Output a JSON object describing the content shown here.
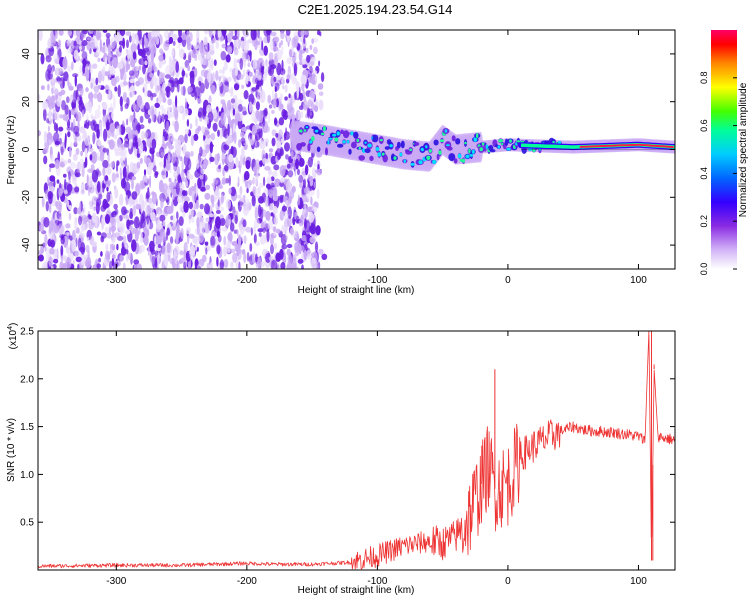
{
  "figure_title": "C2E1.2025.194.23.54.G14",
  "colors": {
    "snr_line": "#ee3333",
    "spectrum_dense": "#6a1ee0",
    "spectrum_light": "#c9a9f5"
  },
  "chart_data": [
    {
      "type": "heatmap",
      "title": "",
      "xlabel": "Height of straight line (km)",
      "ylabel": "Frequency (Hz)",
      "xlim": [
        -360,
        128
      ],
      "ylim": [
        -50,
        50
      ],
      "x_ticks": [
        "-300",
        "-200",
        "-100",
        "0",
        "100"
      ],
      "x_tick_values": [
        -300,
        -200,
        -100,
        0,
        100
      ],
      "y_ticks": [
        "40",
        "20",
        "0",
        "-20",
        "-40"
      ],
      "y_tick_values": [
        40,
        20,
        0,
        -20,
        -40
      ],
      "colorbar": {
        "label": "Normalized spectral amplitude",
        "range": [
          0,
          1
        ],
        "ticks": [
          "0.0",
          "0.2",
          "0.4",
          "0.6",
          "0.8"
        ],
        "tick_values": [
          0.0,
          0.2,
          0.4,
          0.6,
          0.8
        ],
        "colormap": [
          "#ffffff",
          "#d2b4f7",
          "#8a2be2",
          "#3300ff",
          "#0066ff",
          "#00ccff",
          "#00ff99",
          "#44ff00",
          "#ffff00",
          "#ff8800",
          "#ff0000",
          "#ff0066"
        ]
      },
      "regions": [
        {
          "name": "noise",
          "x_range": [
            -360,
            -150
          ],
          "freq_range": [
            -50,
            50
          ],
          "amplitude": 0.2
        },
        {
          "name": "ridge",
          "x_range": [
            -165,
            128
          ],
          "center_freq": 2,
          "amplitude_peak": 1.0
        }
      ],
      "ridge_path": [
        {
          "x": -165,
          "f": 6
        },
        {
          "x": -140,
          "f": 4
        },
        {
          "x": -120,
          "f": 2
        },
        {
          "x": -100,
          "f": 0
        },
        {
          "x": -80,
          "f": -2
        },
        {
          "x": -60,
          "f": -3
        },
        {
          "x": -50,
          "f": 4
        },
        {
          "x": -40,
          "f": 0
        },
        {
          "x": -20,
          "f": 1
        },
        {
          "x": 0,
          "f": 2
        },
        {
          "x": 50,
          "f": 1
        },
        {
          "x": 100,
          "f": 2
        },
        {
          "x": 128,
          "f": 1
        }
      ]
    },
    {
      "type": "line",
      "title": "",
      "xlabel": "Height of straight line (km)",
      "ylabel": "SNR (10 * v/v)",
      "y_multiplier": "(x10",
      "y_multiplier_exp": "4",
      "y_multiplier_close": ")",
      "xlim": [
        -360,
        128
      ],
      "ylim": [
        0,
        2.5
      ],
      "x_ticks": [
        "-300",
        "-200",
        "-100",
        "0",
        "100"
      ],
      "x_tick_values": [
        -300,
        -200,
        -100,
        0,
        100
      ],
      "y_ticks": [
        "0.5",
        "1.0",
        "1.5",
        "2.0",
        "2.5"
      ],
      "y_tick_values": [
        0.5,
        1.0,
        1.5,
        2.0,
        2.5
      ],
      "series": [
        {
          "color": "#ee3333",
          "x": [
            -360,
            -300,
            -250,
            -200,
            -180,
            -150,
            -120,
            -100,
            -80,
            -60,
            -50,
            -40,
            -30,
            -20,
            -15,
            -10,
            0,
            10,
            20,
            30,
            40,
            50,
            60,
            70,
            80,
            90,
            100,
            105,
            108,
            110,
            112,
            115,
            120,
            128
          ],
          "y": [
            0.04,
            0.05,
            0.05,
            0.07,
            0.06,
            0.06,
            0.08,
            0.15,
            0.25,
            0.3,
            0.28,
            0.35,
            0.55,
            0.9,
            1.1,
            0.85,
            0.9,
            1.2,
            1.3,
            1.38,
            1.45,
            1.5,
            1.46,
            1.45,
            1.44,
            1.42,
            1.4,
            1.35,
            2.5,
            0.1,
            2.1,
            1.4,
            1.38,
            1.36
          ],
          "spikes": [
            {
              "x": -10,
              "y": 2.1
            },
            {
              "x": -20,
              "y": 1.3
            },
            {
              "x": 110,
              "y": 2.5
            },
            {
              "x": 111,
              "y": 0.1
            },
            {
              "x": 112,
              "y": 2.15
            }
          ]
        }
      ]
    }
  ]
}
